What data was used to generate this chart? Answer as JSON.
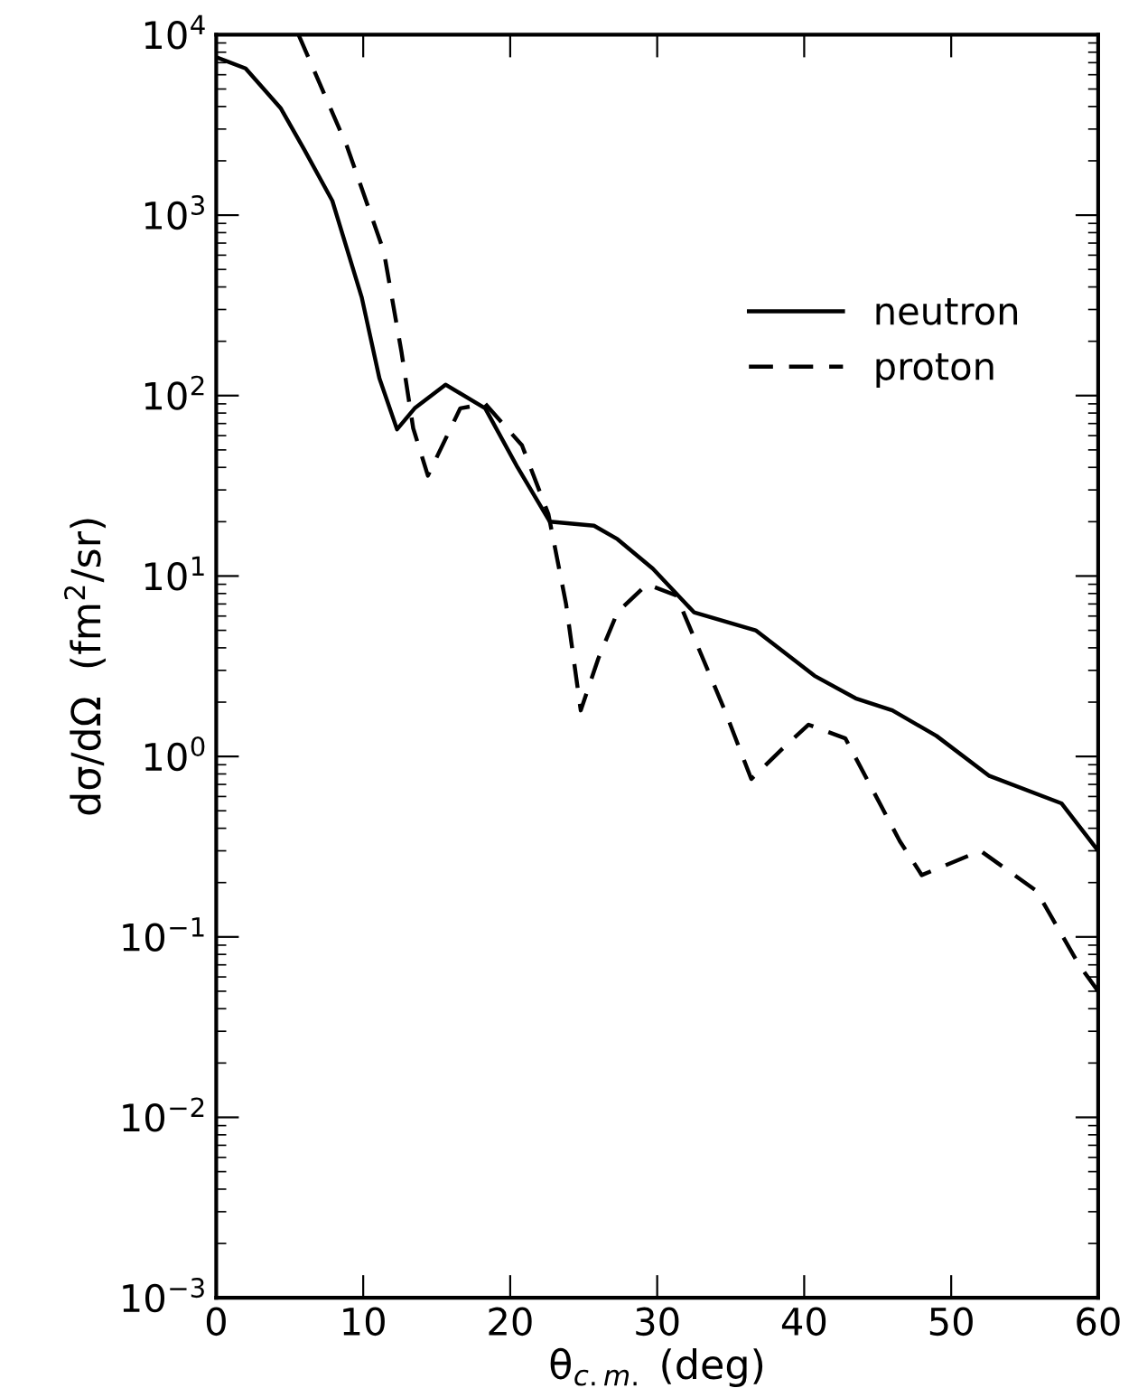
{
  "chart_data": {
    "type": "line",
    "xlabel": "θ$_{c.m.}$ (deg)",
    "ylabel": "dσ/dΩ  (fm$^{2}$/sr)",
    "log": "y",
    "xlim": [
      0,
      60
    ],
    "ylim": [
      0.001,
      10000
    ],
    "xticks": [
      0,
      10,
      20,
      30,
      40,
      50,
      60
    ],
    "yticks": [
      {
        "value": 0.001,
        "label": "10$^{−3}$"
      },
      {
        "value": 0.01,
        "label": "10$^{−2}$"
      },
      {
        "value": 0.1,
        "label": "10$^{−1}$"
      },
      {
        "value": 1,
        "label": "10$^{0}$"
      },
      {
        "value": 10,
        "label": "10$^{1}$"
      },
      {
        "value": 100,
        "label": "10$^{2}$"
      },
      {
        "value": 1000,
        "label": "10$^{3}$"
      },
      {
        "value": 10000,
        "label": "10$^{4}$"
      }
    ],
    "grid": false,
    "legend": "upper right",
    "marker": "none",
    "series": [
      {
        "name": "neutron",
        "color": "#000000",
        "line_style": "solid",
        "x": [
          0,
          2,
          4.4,
          6,
          7.9,
          9.9,
          11.1,
          12.3,
          13.5,
          15.6,
          18.3,
          20.5,
          22.7,
          25.7,
          27.3,
          29.7,
          32.5,
          36.7,
          40.7,
          43.5,
          46,
          49,
          52.6,
          57.5,
          60
        ],
        "values": [
          7500,
          6500,
          3900,
          2300,
          1200,
          350,
          125,
          65,
          85,
          115,
          85,
          40,
          20,
          19,
          16,
          11,
          6.3,
          5.0,
          2.8,
          2.1,
          1.8,
          1.3,
          0.78,
          0.55,
          0.3
        ]
      },
      {
        "name": "proton",
        "color": "#000000",
        "line_style": "dashed",
        "x": [
          5.6,
          8.9,
          11.4,
          12.6,
          13.4,
          14.4,
          16.6,
          18.3,
          20.8,
          22.6,
          23.8,
          24.8,
          26,
          27.3,
          29.3,
          31.3,
          34.6,
          36.4,
          38.5,
          40.3,
          42.8,
          46.5,
          48,
          52,
          55.8,
          58.7,
          60
        ],
        "values": [
          10000,
          2400,
          630,
          175,
          66,
          36,
          85,
          90,
          53,
          22,
          7,
          1.8,
          3.5,
          6.3,
          9,
          7.8,
          1.8,
          0.75,
          1.1,
          1.5,
          1.26,
          0.34,
          0.22,
          0.3,
          0.18,
          0.07,
          0.05
        ]
      }
    ]
  }
}
